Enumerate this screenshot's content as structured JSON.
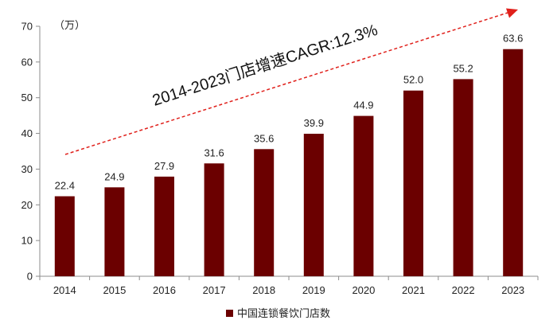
{
  "chart_data": {
    "type": "bar",
    "categories": [
      "2014",
      "2015",
      "2016",
      "2017",
      "2018",
      "2019",
      "2020",
      "2021",
      "2022",
      "2023"
    ],
    "series": [
      {
        "name": "中国连锁餐饮门店数",
        "values": [
          22.4,
          24.9,
          27.9,
          31.6,
          35.6,
          39.9,
          44.9,
          52.0,
          55.2,
          63.6
        ],
        "labels": [
          "22.4",
          "24.9",
          "27.9",
          "31.6",
          "35.6",
          "39.9",
          "44.9",
          "52.0",
          "55.2",
          "63.6"
        ],
        "color": "#6b0000"
      }
    ],
    "y_unit": "（万）",
    "ylim": [
      0,
      70
    ],
    "yticks": [
      0,
      10,
      20,
      30,
      40,
      50,
      60,
      70
    ],
    "annotation": {
      "text": "2014-2023门店增速CAGR:12.3%",
      "arrow_color": "#e0201b",
      "style": "dashed-arrow"
    },
    "legend_position": "bottom-center",
    "grid": false
  }
}
